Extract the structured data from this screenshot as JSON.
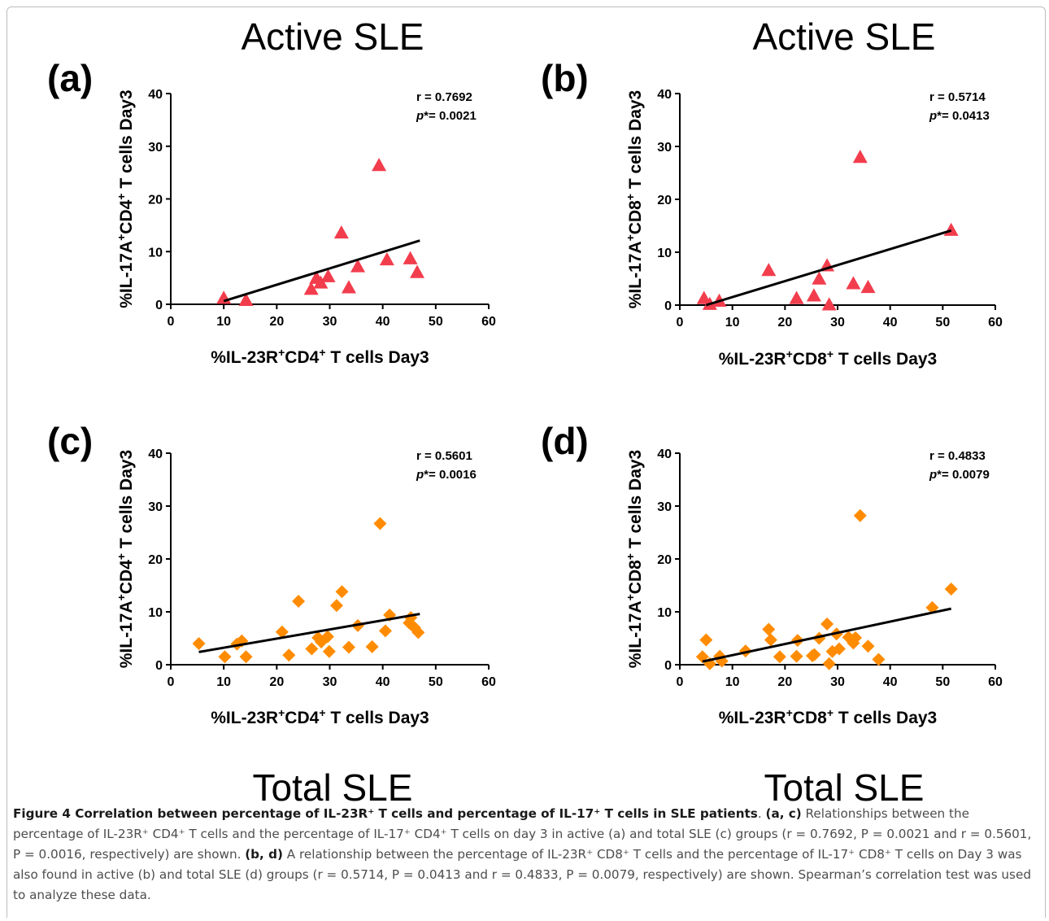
{
  "titles": {
    "top_left": "Active SLE",
    "top_right": "Active SLE",
    "bottom_left": "Total SLE",
    "bottom_right": "Total SLE"
  },
  "colors": {
    "active": "#f23d4d",
    "total": "#ff8c00",
    "fit_line": "#000000"
  },
  "chart_data": [
    {
      "id": "a",
      "panel_label": "(a)",
      "type": "scatter",
      "marker": "triangle",
      "color": "#f23d4d",
      "xlabel": [
        "%IL-23R",
        "+",
        "CD4",
        "+",
        " T cells Day3"
      ],
      "ylabel": [
        "%IL-17A",
        "+",
        "CD4",
        "+",
        " T cells Day3"
      ],
      "xlim": [
        0,
        60
      ],
      "ylim": [
        0,
        40
      ],
      "xticks": [
        0,
        10,
        20,
        30,
        40,
        50,
        60
      ],
      "yticks": [
        0,
        10,
        20,
        30,
        40
      ],
      "stat_r": "r  = 0.7692",
      "stat_p": "= 0.0021",
      "points": [
        {
          "x": 10.0,
          "y": 1.2
        },
        {
          "x": 14.2,
          "y": 0.8
        },
        {
          "x": 26.5,
          "y": 2.9
        },
        {
          "x": 27.5,
          "y": 5.0
        },
        {
          "x": 28.3,
          "y": 4.1
        },
        {
          "x": 29.7,
          "y": 5.3
        },
        {
          "x": 32.2,
          "y": 13.6
        },
        {
          "x": 33.6,
          "y": 3.2
        },
        {
          "x": 35.3,
          "y": 7.2
        },
        {
          "x": 39.3,
          "y": 26.4
        },
        {
          "x": 40.8,
          "y": 8.5
        },
        {
          "x": 45.2,
          "y": 8.7
        },
        {
          "x": 46.5,
          "y": 6.1
        }
      ],
      "fit": {
        "x": [
          10.0,
          47.0
        ],
        "y": [
          0.6,
          12.1
        ]
      }
    },
    {
      "id": "b",
      "panel_label": "(b)",
      "type": "scatter",
      "marker": "triangle",
      "color": "#f23d4d",
      "xlabel": [
        "%IL-23R",
        "+",
        "CD8",
        "+",
        " T cells Day3"
      ],
      "ylabel": [
        "%IL-17A",
        "+",
        "CD8",
        "+",
        " T cells Day3"
      ],
      "xlim": [
        0,
        60
      ],
      "ylim": [
        0,
        40
      ],
      "xticks": [
        0,
        10,
        20,
        30,
        40,
        50,
        60
      ],
      "yticks": [
        0,
        10,
        20,
        30,
        40
      ],
      "stat_r": "r  = 0.5714",
      "stat_p": "= 0.0413",
      "points": [
        {
          "x": 4.6,
          "y": 1.3
        },
        {
          "x": 5.7,
          "y": 0.2
        },
        {
          "x": 7.5,
          "y": 0.8
        },
        {
          "x": 16.9,
          "y": 6.6
        },
        {
          "x": 22.2,
          "y": 1.3
        },
        {
          "x": 25.5,
          "y": 1.8
        },
        {
          "x": 26.5,
          "y": 5.0
        },
        {
          "x": 28.0,
          "y": 7.5
        },
        {
          "x": 28.4,
          "y": 0.1
        },
        {
          "x": 33.0,
          "y": 4.1
        },
        {
          "x": 34.3,
          "y": 28.0
        },
        {
          "x": 35.8,
          "y": 3.4
        },
        {
          "x": 51.6,
          "y": 14.2
        }
      ],
      "fit": {
        "x": [
          5.0,
          51.6
        ],
        "y": [
          0.0,
          14.1
        ]
      }
    },
    {
      "id": "c",
      "panel_label": "(c)",
      "type": "scatter",
      "marker": "diamond",
      "color": "#ff8c00",
      "xlabel": [
        "%IL-23R",
        "+",
        "CD4",
        "+",
        " T cells Day3"
      ],
      "ylabel": [
        "%IL-17A",
        "+",
        "CD4",
        "+",
        " T cells Day3"
      ],
      "xlim": [
        0,
        60
      ],
      "ylim": [
        0,
        40
      ],
      "xticks": [
        0,
        10,
        20,
        30,
        40,
        50,
        60
      ],
      "yticks": [
        0,
        10,
        20,
        30,
        40
      ],
      "stat_r": "r  = 0.5601",
      "stat_p": "= 0.0016",
      "points": [
        {
          "x": 5.3,
          "y": 4.0
        },
        {
          "x": 10.2,
          "y": 1.5
        },
        {
          "x": 12.5,
          "y": 3.9
        },
        {
          "x": 13.4,
          "y": 4.5
        },
        {
          "x": 14.2,
          "y": 1.5
        },
        {
          "x": 21.0,
          "y": 6.2
        },
        {
          "x": 22.3,
          "y": 1.8
        },
        {
          "x": 24.1,
          "y": 12.0
        },
        {
          "x": 26.6,
          "y": 3.0
        },
        {
          "x": 27.8,
          "y": 5.1
        },
        {
          "x": 28.4,
          "y": 4.3
        },
        {
          "x": 29.6,
          "y": 5.3
        },
        {
          "x": 29.9,
          "y": 2.5
        },
        {
          "x": 31.3,
          "y": 11.2
        },
        {
          "x": 32.3,
          "y": 13.8
        },
        {
          "x": 33.6,
          "y": 3.3
        },
        {
          "x": 35.3,
          "y": 7.4
        },
        {
          "x": 38.0,
          "y": 3.4
        },
        {
          "x": 39.5,
          "y": 26.7
        },
        {
          "x": 40.5,
          "y": 6.4
        },
        {
          "x": 41.3,
          "y": 9.4
        },
        {
          "x": 45.0,
          "y": 7.9
        },
        {
          "x": 45.3,
          "y": 8.9
        },
        {
          "x": 46.0,
          "y": 7.0
        },
        {
          "x": 46.7,
          "y": 6.1
        }
      ],
      "fit": {
        "x": [
          5.3,
          47.0
        ],
        "y": [
          2.4,
          9.6
        ]
      }
    },
    {
      "id": "d",
      "panel_label": "(d)",
      "type": "scatter",
      "marker": "diamond",
      "color": "#ff8c00",
      "xlabel": [
        "%IL-23R",
        "+",
        "CD8",
        "+",
        " T cells Day3"
      ],
      "ylabel": [
        "%IL-17A",
        "+",
        "CD8",
        "+",
        " T cells Day3"
      ],
      "xlim": [
        0,
        60
      ],
      "ylim": [
        0,
        40
      ],
      "xticks": [
        0,
        10,
        20,
        30,
        40,
        50,
        60
      ],
      "yticks": [
        0,
        10,
        20,
        30,
        40
      ],
      "stat_r": "r  = 0.4833",
      "stat_p": "= 0.0079",
      "points": [
        {
          "x": 4.3,
          "y": 1.5
        },
        {
          "x": 5.0,
          "y": 4.7
        },
        {
          "x": 5.7,
          "y": 0.2
        },
        {
          "x": 7.6,
          "y": 1.6
        },
        {
          "x": 8.0,
          "y": 0.7
        },
        {
          "x": 12.5,
          "y": 2.6
        },
        {
          "x": 16.9,
          "y": 6.7
        },
        {
          "x": 17.3,
          "y": 4.7
        },
        {
          "x": 19.0,
          "y": 1.5
        },
        {
          "x": 22.2,
          "y": 1.6
        },
        {
          "x": 22.4,
          "y": 4.6
        },
        {
          "x": 25.2,
          "y": 1.7
        },
        {
          "x": 25.6,
          "y": 1.9
        },
        {
          "x": 26.5,
          "y": 5.0
        },
        {
          "x": 28.0,
          "y": 7.7
        },
        {
          "x": 28.4,
          "y": 0.2
        },
        {
          "x": 29.0,
          "y": 2.5
        },
        {
          "x": 29.8,
          "y": 5.8
        },
        {
          "x": 30.3,
          "y": 3.0
        },
        {
          "x": 32.1,
          "y": 5.2
        },
        {
          "x": 33.0,
          "y": 4.1
        },
        {
          "x": 33.4,
          "y": 5.1
        },
        {
          "x": 34.3,
          "y": 28.2
        },
        {
          "x": 35.8,
          "y": 3.5
        },
        {
          "x": 37.8,
          "y": 1.0
        },
        {
          "x": 48.0,
          "y": 10.8
        },
        {
          "x": 51.6,
          "y": 14.3
        }
      ],
      "fit": {
        "x": [
          4.3,
          51.6
        ],
        "y": [
          0.6,
          10.6
        ]
      }
    }
  ],
  "caption": {
    "title": "Figure 4 Correlation between percentage of IL-23R⁺ T cells and percentage of IL-17⁺ T cells in SLE patients",
    "ac_label": "(a, c)",
    "ac_text": "Relationships between the percentage of IL-23R⁺ CD4⁺ T cells and the percentage of IL-17⁺ CD4⁺ T cells on day 3 in active (a) and total SLE (c) groups (r = 0.7692, P = 0.0021 and r = 0.5601, P = 0.0016, respectively) are shown.",
    "bd_label": "(b, d)",
    "bd_text": "A relationship between the percentage of IL-23R⁺ CD8⁺ T cells and the percentage of IL-17⁺ CD8⁺ T cells on Day 3 was also found in active (b) and total SLE (d) groups (r = 0.5714, P = 0.0413 and r = 0.4833, P = 0.0079, respectively) are shown. Spearman’s correlation test was used to analyze these data."
  }
}
